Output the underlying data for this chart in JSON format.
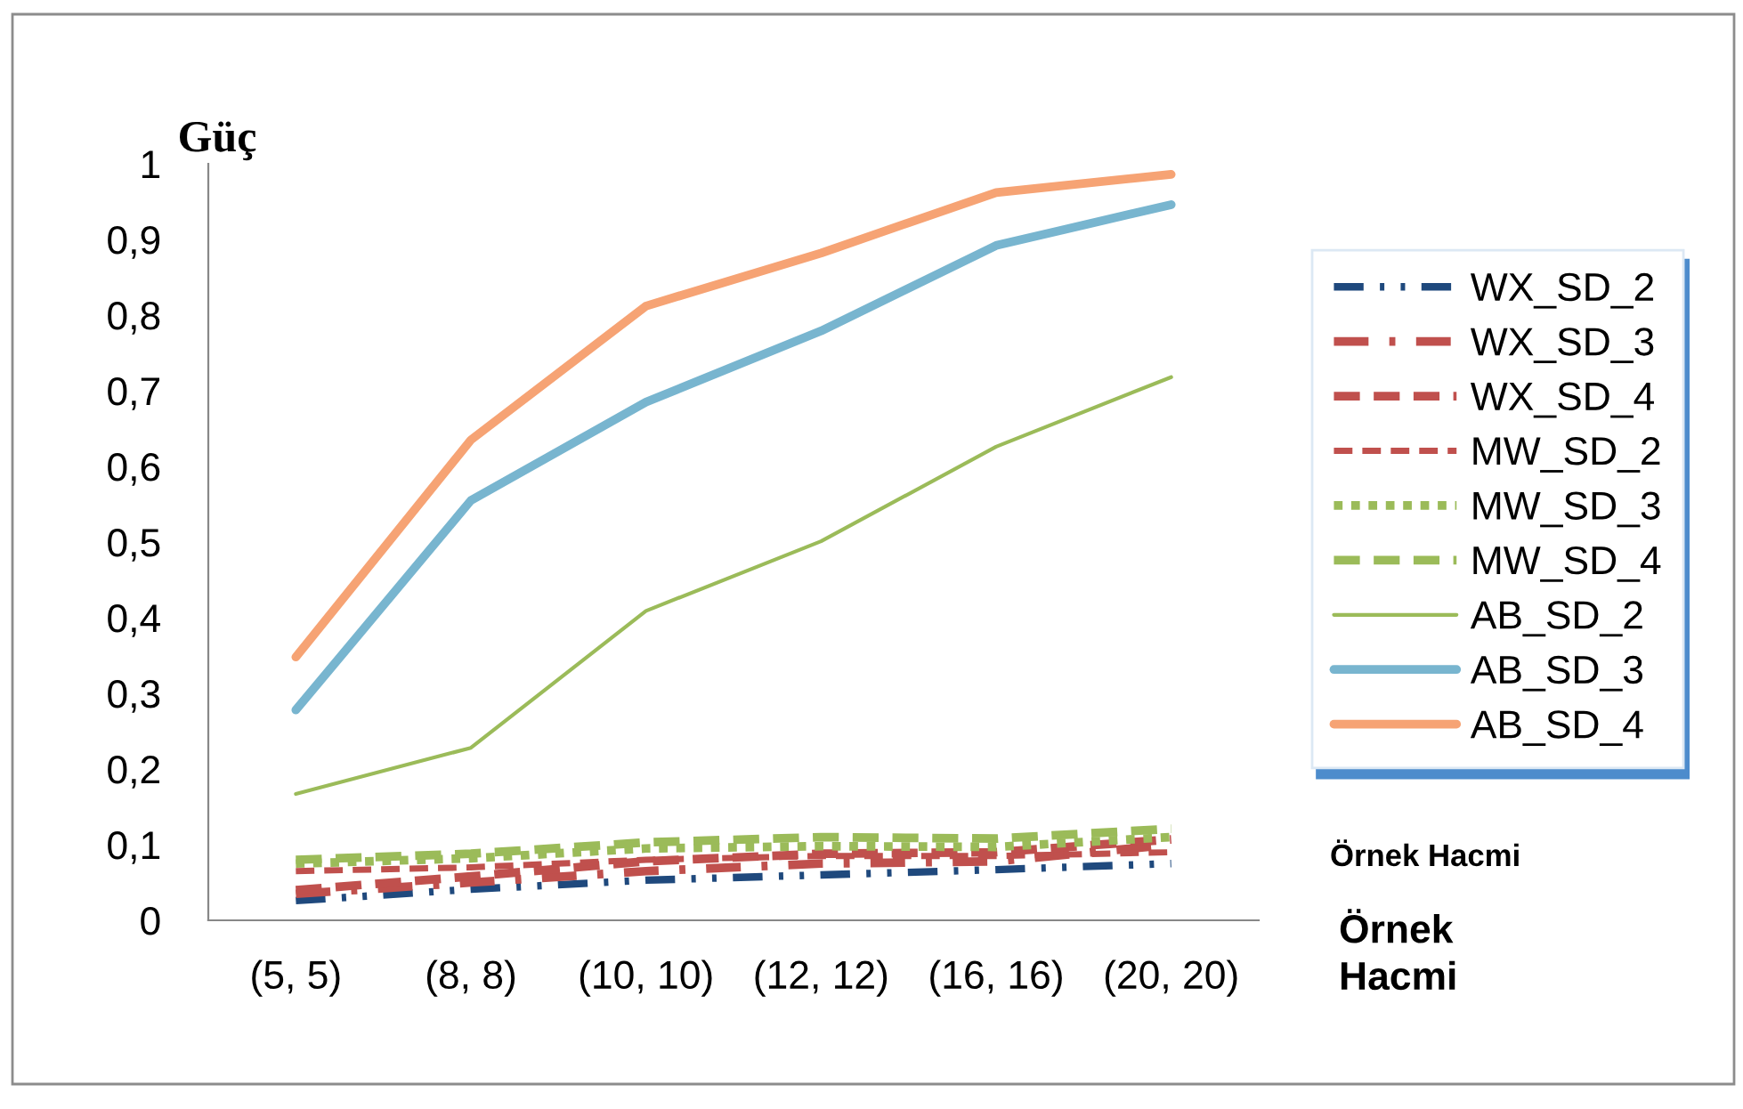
{
  "chart_data": {
    "type": "line",
    "ylabel": "Güç",
    "xlabel": "Örnek\nHacmi",
    "annotations": [
      "Örnek Hacmi"
    ],
    "categories": [
      "(5, 5)",
      "(8, 8)",
      "(10, 10)",
      "(12, 12)",
      "(16, 16)",
      "(20, 20)"
    ],
    "ylim": [
      0,
      1
    ],
    "yticks": [
      0,
      {
        "value": 0.1,
        "label": "0,1"
      },
      {
        "value": 0.2,
        "label": "0,2"
      },
      {
        "value": 0.3,
        "label": "0,3"
      },
      {
        "value": 0.4,
        "label": "0,4"
      },
      {
        "value": 0.5,
        "label": "0,5"
      },
      {
        "value": 0.6,
        "label": "0,6"
      },
      {
        "value": 0.7,
        "label": "0,7"
      },
      {
        "value": 0.8,
        "label": "0,8"
      },
      {
        "value": 0.9,
        "label": "0,9"
      },
      1
    ],
    "legend": "right",
    "grid": false,
    "series": [
      {
        "name": "WX_SD_2",
        "color": "#1f497d",
        "line_style": "dashdotdot",
        "values": [
          0.026,
          0.041,
          0.053,
          0.06,
          0.067,
          0.075
        ]
      },
      {
        "name": "WX_SD_3",
        "color": "#c0504d",
        "line_style": "dashdot",
        "values": [
          0.035,
          0.05,
          0.065,
          0.075,
          0.078,
          0.1
        ]
      },
      {
        "name": "WX_SD_4",
        "color": "#c0504d",
        "line_style": "dashed",
        "values": [
          0.04,
          0.058,
          0.078,
          0.088,
          0.09,
          0.107
        ]
      },
      {
        "name": "MW_SD_2",
        "color": "#c0504d",
        "line_style": "dashed",
        "values": [
          0.065,
          0.07,
          0.08,
          0.085,
          0.085,
          0.09
        ]
      },
      {
        "name": "MW_SD_3",
        "color": "#9bbb59",
        "line_style": "dotted",
        "values": [
          0.075,
          0.082,
          0.095,
          0.098,
          0.097,
          0.11
        ]
      },
      {
        "name": "MW_SD_4",
        "color": "#9bbb59",
        "line_style": "dashed",
        "values": [
          0.08,
          0.088,
          0.103,
          0.11,
          0.108,
          0.121
        ]
      },
      {
        "name": "AB_SD_2",
        "color": "#9bbb59",
        "line_style": "solid",
        "values": [
          0.167,
          0.228,
          0.409,
          0.501,
          0.626,
          0.718
        ]
      },
      {
        "name": "AB_SD_3",
        "color": "#78b5cf",
        "line_style": "solid",
        "values": [
          0.278,
          0.555,
          0.685,
          0.779,
          0.892,
          0.946
        ]
      },
      {
        "name": "AB_SD_4",
        "color": "#f6a374",
        "line_style": "solid",
        "values": [
          0.348,
          0.635,
          0.812,
          0.882,
          0.962,
          0.986
        ]
      }
    ]
  }
}
